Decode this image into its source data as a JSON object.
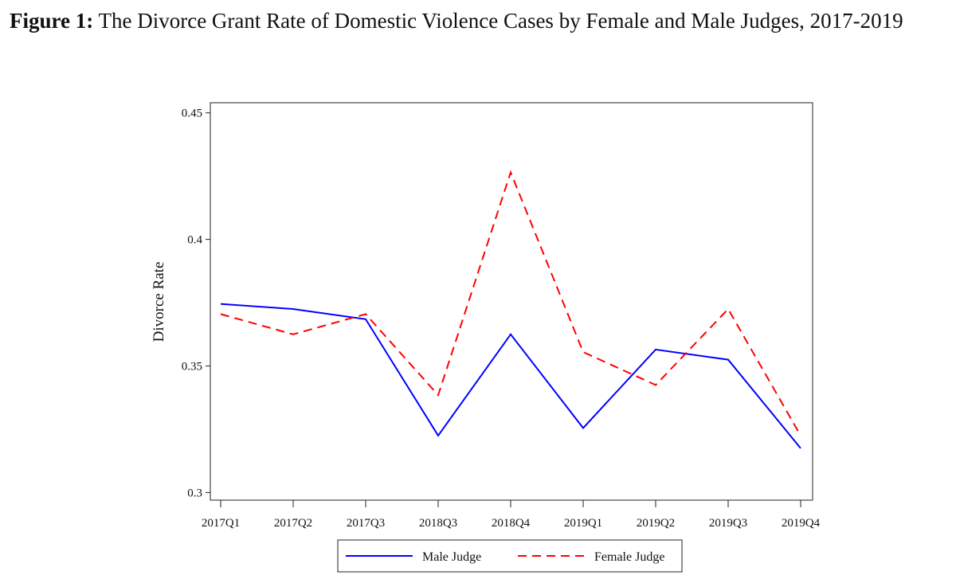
{
  "figure": {
    "label": "Figure 1:",
    "caption": "The Divorce Grant Rate of Domestic Violence Cases by Female and Male Judges, 2017-2019"
  },
  "chart_data": {
    "type": "line",
    "title": "The Divorce Grant Rate of Domestic Violence Cases by Female and Male Judges, 2017-2019",
    "xlabel": "",
    "ylabel": "Divorce Rate",
    "categories": [
      "2017Q1",
      "2017Q2",
      "2017Q3",
      "2018Q3",
      "2018Q4",
      "2019Q1",
      "2019Q2",
      "2019Q3",
      "2019Q4"
    ],
    "ylim": [
      0.297,
      0.454
    ],
    "yticks": [
      0.3,
      0.35,
      0.4,
      0.45
    ],
    "ytick_labels": [
      "0.3",
      "0.35",
      "0.4",
      "0.45"
    ],
    "grid": false,
    "legend_position": "bottom",
    "series": [
      {
        "name": "Male Judge",
        "color": "#0000ff",
        "dash": "solid",
        "values": [
          0.3745,
          0.3725,
          0.3685,
          0.3225,
          0.3625,
          0.3255,
          0.3565,
          0.3525,
          0.3175
        ]
      },
      {
        "name": "Female Judge",
        "color": "#ff0000",
        "dash": "dashed",
        "values": [
          0.3705,
          0.3625,
          0.3705,
          0.3385,
          0.4265,
          0.3555,
          0.3425,
          0.3725,
          0.3225
        ]
      }
    ]
  }
}
